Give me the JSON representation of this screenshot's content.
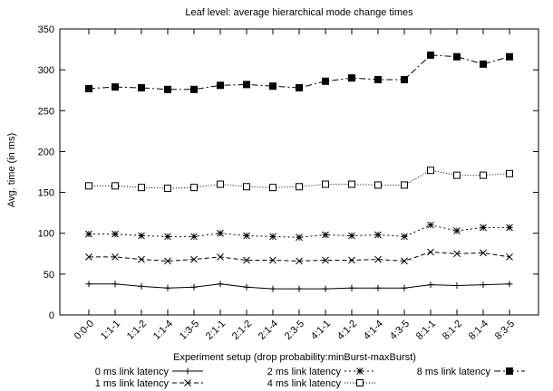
{
  "chart_data": {
    "type": "line",
    "title": "Leaf level: average hierarchical mode change times",
    "xlabel": "Experiment setup (drop probability:minBurst-maxBurst)",
    "ylabel": "Avg. time (in ms)",
    "ylim": [
      0,
      350
    ],
    "yticks": [
      0,
      50,
      100,
      150,
      200,
      250,
      300,
      350
    ],
    "grid": false,
    "legend_position": "bottom",
    "categories": [
      "0:0-0",
      "1:1-1",
      "1:1-2",
      "1:1-4",
      "1:3-5",
      "2:1-1",
      "2:1-2",
      "2:1-4",
      "2:3-5",
      "4:1-1",
      "4:1-2",
      "4:1-4",
      "4:3-5",
      "8:1-1",
      "8:1-2",
      "8:1-4",
      "8:3-5"
    ],
    "series": [
      {
        "name": "0 ms link latency",
        "marker": "plus",
        "dash": "",
        "values": [
          38,
          38,
          35,
          33,
          34,
          38,
          34,
          32,
          32,
          32,
          33,
          33,
          33,
          37,
          36,
          37,
          38
        ]
      },
      {
        "name": "1 ms link latency",
        "marker": "cross",
        "dash": "5,3",
        "values": [
          71,
          71,
          68,
          66,
          68,
          71,
          67,
          67,
          66,
          67,
          67,
          68,
          66,
          77,
          75,
          76,
          71
        ]
      },
      {
        "name": "2 ms link latency",
        "marker": "star",
        "dash": "2,3",
        "values": [
          99,
          99,
          97,
          96,
          96,
          100,
          97,
          96,
          95,
          98,
          97,
          98,
          96,
          110,
          103,
          107,
          107
        ]
      },
      {
        "name": "4 ms link latency",
        "marker": "open-square",
        "dash": "1,2",
        "values": [
          158,
          158,
          156,
          155,
          156,
          160,
          157,
          156,
          157,
          160,
          160,
          159,
          159,
          177,
          171,
          171,
          173
        ]
      },
      {
        "name": "8 ms link latency",
        "marker": "filled-square",
        "dash": "7,3,2,3",
        "values": [
          277,
          279,
          278,
          276,
          276,
          281,
          282,
          280,
          278,
          286,
          290,
          288,
          288,
          318,
          316,
          307,
          316
        ]
      }
    ]
  }
}
